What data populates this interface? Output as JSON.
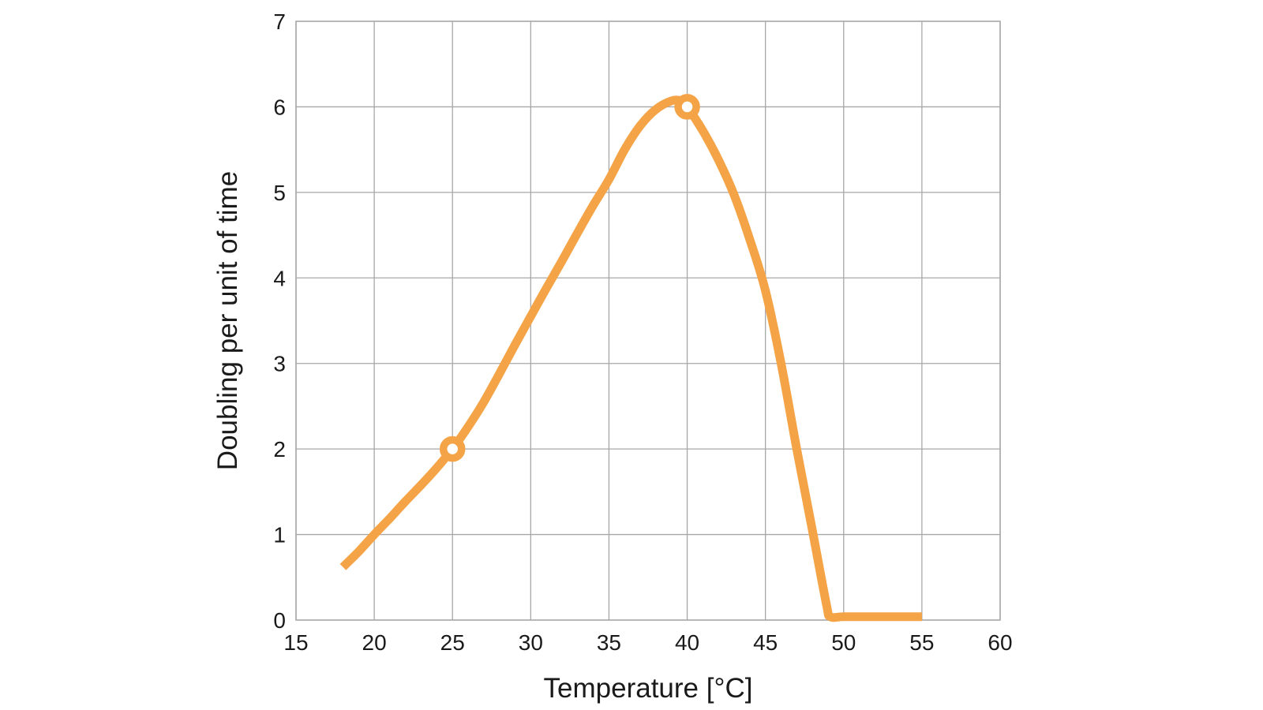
{
  "colors": {
    "curve": "#F4A446",
    "grid": "#A7A7A7",
    "text": "#1A1A1A",
    "background": "#FFFFFF",
    "marker_fill": "#FFFFFF"
  },
  "chart_data": {
    "type": "line",
    "title": "",
    "xlabel": "Temperature [°C]",
    "ylabel": "Doubling per unit of time",
    "xlim": [
      15,
      60
    ],
    "ylim": [
      0,
      7
    ],
    "x_ticks": [
      15,
      20,
      25,
      30,
      35,
      40,
      45,
      50,
      55,
      60
    ],
    "y_ticks": [
      0,
      1,
      2,
      3,
      4,
      5,
      6,
      7
    ],
    "grid": true,
    "legend": false,
    "series": [
      {
        "name": "doubling-rate",
        "color": "#F4A446",
        "points": [
          [
            18,
            0.62
          ],
          [
            19,
            0.8
          ],
          [
            20,
            1.0
          ],
          [
            21,
            1.19
          ],
          [
            22,
            1.39
          ],
          [
            23,
            1.58
          ],
          [
            24,
            1.78
          ],
          [
            25,
            2.0
          ],
          [
            26,
            2.26
          ],
          [
            27,
            2.55
          ],
          [
            28,
            2.88
          ],
          [
            29,
            3.22
          ],
          [
            30,
            3.55
          ],
          [
            31,
            3.88
          ],
          [
            32,
            4.2
          ],
          [
            33,
            4.53
          ],
          [
            34,
            4.85
          ],
          [
            35,
            5.15
          ],
          [
            36,
            5.5
          ],
          [
            37,
            5.78
          ],
          [
            38,
            5.97
          ],
          [
            39,
            6.07
          ],
          [
            39.6,
            6.07
          ],
          [
            40,
            6.0
          ],
          [
            41,
            5.72
          ],
          [
            42,
            5.38
          ],
          [
            43,
            4.97
          ],
          [
            44,
            4.45
          ],
          [
            45,
            3.85
          ],
          [
            46,
            3.0
          ],
          [
            47,
            2.0
          ],
          [
            48,
            1.05
          ],
          [
            48.9,
            0.18
          ],
          [
            49.15,
            0.04
          ],
          [
            50,
            0.04
          ],
          [
            52,
            0.04
          ],
          [
            55,
            0.04
          ]
        ]
      }
    ],
    "highlighted_points": [
      {
        "x": 25,
        "y": 2
      },
      {
        "x": 40,
        "y": 6
      }
    ]
  }
}
